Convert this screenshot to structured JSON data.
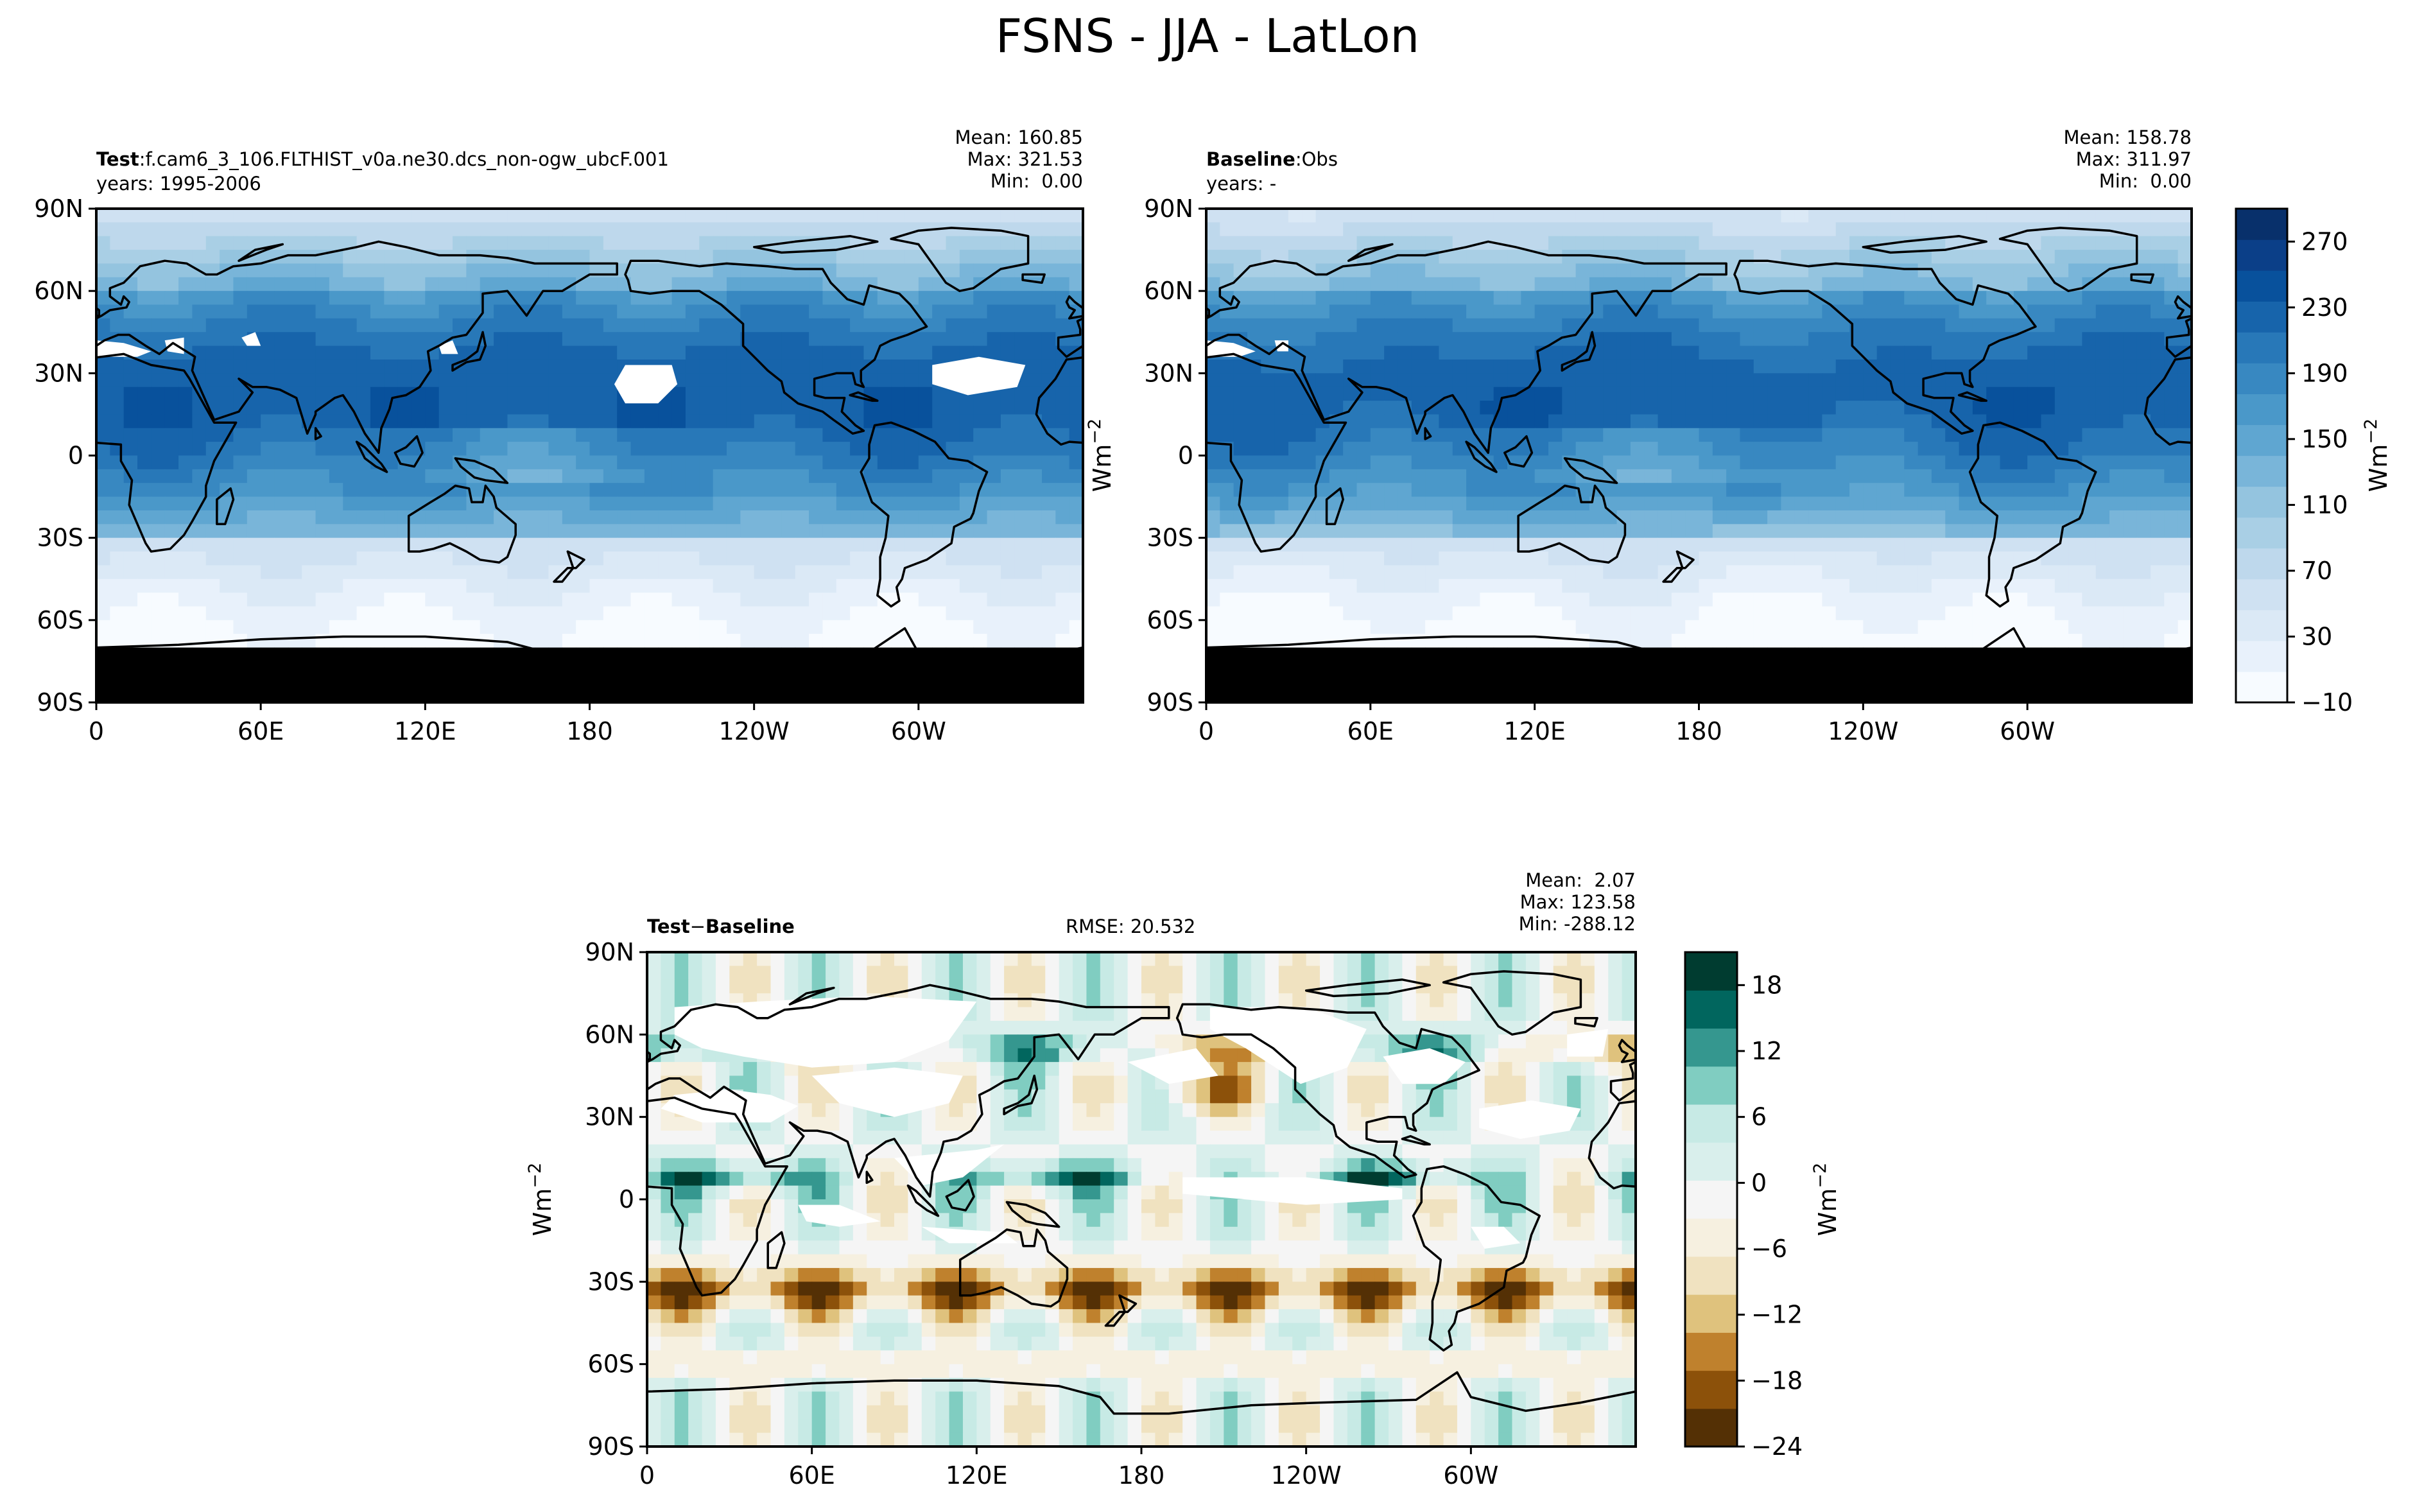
{
  "title": "FSNS - JJA - LatLon",
  "colors": {
    "sequential_blues": [
      "#f7fbff",
      "#e8f1fb",
      "#dbe9f6",
      "#cfe1f2",
      "#bed8ec",
      "#a9cfe5",
      "#94c4df",
      "#79b5d9",
      "#5fa6d1",
      "#4a98c9",
      "#3888c1",
      "#2878b8",
      "#1764ab",
      "#08519c",
      "#0b3f88",
      "#08306b"
    ],
    "diverging_brbg": [
      "#543005",
      "#8c510a",
      "#bf812d",
      "#dfc27d",
      "#f0e2c0",
      "#f6f0e0",
      "#f5f5f5",
      "#d9efec",
      "#c7eae5",
      "#80cdc1",
      "#35978f",
      "#01665e",
      "#003c30"
    ],
    "coast": "#000000",
    "missing": "#ffffff"
  },
  "panels": {
    "test": {
      "title_bold": "Test",
      "title_sep": ":",
      "title_rest": "f.cam6_3_106.FLTHIST_v0a.ne30.dcs_non-ogw_ubcF.001",
      "subtitle": "years: 1995-2006",
      "mean": "Mean: 160.85",
      "max": "Max: 321.53",
      "min": "Min:  0.00"
    },
    "baseline": {
      "title_bold": "Baseline",
      "title_sep": ":",
      "title_rest": "Obs",
      "subtitle": "years: -",
      "mean": "Mean: 158.78",
      "max": "Max: 311.97",
      "min": "Min:  0.00"
    },
    "diff": {
      "title_bold": "Test",
      "title_minus": "−",
      "title_bold2": "Baseline",
      "rmse": "RMSE: 20.532",
      "mean": "Mean:  2.07",
      "max": "Max: 123.58",
      "min": "Min: -288.12"
    }
  },
  "axes": {
    "lat_ticks": [
      "90N",
      "60N",
      "30N",
      "0",
      "30S",
      "60S",
      "90S"
    ],
    "lon_ticks": [
      "0",
      "60E",
      "120E",
      "180",
      "120W",
      "60W"
    ]
  },
  "colorbars": {
    "top": {
      "ticks": [
        "270",
        "230",
        "190",
        "150",
        "110",
        "70",
        "30",
        "−10"
      ],
      "unit_base": "Wm",
      "unit_exp": "−2"
    },
    "diff": {
      "ticks": [
        "18",
        "12",
        "6",
        "0",
        "−6",
        "−12",
        "−18",
        "−24"
      ],
      "unit_base": "Wm",
      "unit_exp": "−2"
    }
  },
  "left_units": {
    "top": {
      "base": "Wm",
      "exp": "−2"
    },
    "diff": {
      "base": "Wm",
      "exp": "−2"
    }
  },
  "chart_data": [
    {
      "type": "heatmap",
      "panel": "Test",
      "title": "Test : f.cam6_3_106.FLTHIST_v0a.ne30.dcs_non-ogw_ubcF.001",
      "subtitle": "years: 1995-2006",
      "stats": {
        "mean": 160.85,
        "max": 321.53,
        "min": 0.0
      },
      "x": {
        "label": "",
        "range": [
          0,
          360
        ],
        "ticks": [
          "0",
          "60E",
          "120E",
          "180",
          "120W",
          "60W"
        ]
      },
      "y": {
        "label": "",
        "range": [
          -90,
          90
        ],
        "ticks": [
          "90N",
          "60N",
          "30N",
          "0",
          "30S",
          "60S",
          "90S"
        ]
      },
      "colorbar": {
        "label": "Wm^-2",
        "range": [
          -10,
          290
        ],
        "ticks": [
          270,
          230,
          190,
          150,
          110,
          70,
          30,
          -10
        ],
        "colormap": "Blues"
      }
    },
    {
      "type": "heatmap",
      "panel": "Baseline",
      "title": "Baseline : Obs",
      "subtitle": "years: -",
      "stats": {
        "mean": 158.78,
        "max": 311.97,
        "min": 0.0
      },
      "x": {
        "label": "",
        "range": [
          0,
          360
        ],
        "ticks": [
          "0",
          "60E",
          "120E",
          "180",
          "120W",
          "60W"
        ]
      },
      "y": {
        "label": "",
        "range": [
          -90,
          90
        ],
        "ticks": [
          "90N",
          "60N",
          "30N",
          "0",
          "30S",
          "60S",
          "90S"
        ]
      },
      "colorbar": {
        "label": "Wm^-2",
        "range": [
          -10,
          290
        ],
        "ticks": [
          270,
          230,
          190,
          150,
          110,
          70,
          30,
          -10
        ],
        "colormap": "Blues"
      }
    },
    {
      "type": "heatmap",
      "panel": "Test - Baseline",
      "title": "Test − Baseline",
      "rmse": 20.532,
      "stats": {
        "mean": 2.07,
        "max": 123.58,
        "min": -288.12
      },
      "x": {
        "label": "",
        "range": [
          0,
          360
        ],
        "ticks": [
          "0",
          "60E",
          "120E",
          "180",
          "120W",
          "60W"
        ]
      },
      "y": {
        "label": "",
        "range": [
          -90,
          90
        ],
        "ticks": [
          "90N",
          "60N",
          "30N",
          "0",
          "30S",
          "60S",
          "90S"
        ]
      },
      "colorbar": {
        "label": "Wm^-2",
        "range": [
          -24,
          21
        ],
        "ticks": [
          18,
          12,
          6,
          0,
          -6,
          -12,
          -18,
          -24
        ],
        "colormap": "BrBG"
      }
    }
  ]
}
